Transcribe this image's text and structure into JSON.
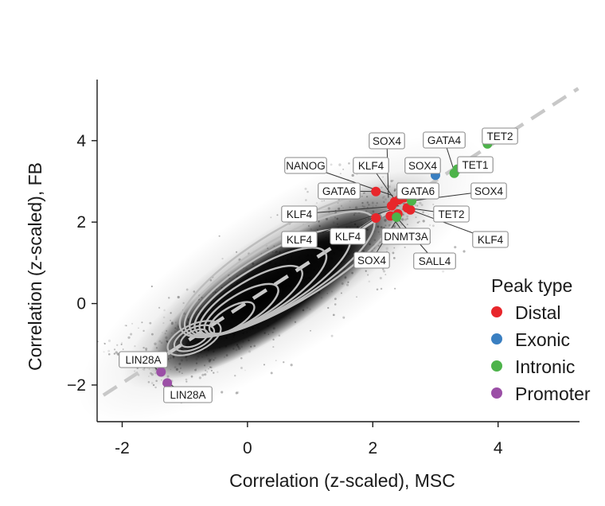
{
  "chart_data": {
    "type": "scatter",
    "title": "",
    "xlabel": "Correlation (z-scaled), MSC",
    "ylabel": "Correlation (z-scaled), FB",
    "xlim": [
      -2.4,
      5.3
    ],
    "ylim": [
      -2.9,
      5.5
    ],
    "xticks": [
      -2,
      0,
      2,
      4
    ],
    "yticks": [
      -2,
      0,
      2,
      4
    ],
    "xtick_labels": [
      "-2",
      "0",
      "2",
      "4"
    ],
    "ytick_labels": [
      "−2",
      "0",
      "2",
      "4"
    ],
    "grid": false,
    "reference_line": {
      "style": "dashed",
      "slope": 1,
      "intercept": 0,
      "color": "#c8c8c8"
    },
    "background_density": {
      "description_color": "#000000",
      "contour_color": "#bdbdbd"
    },
    "legend": {
      "title": "Peak type",
      "placement": "right",
      "entries": [
        {
          "name": "Distal",
          "color": "#e8262b"
        },
        {
          "name": "Exonic",
          "color": "#3a7fc1"
        },
        {
          "name": "Intronic",
          "color": "#4db34a"
        },
        {
          "name": "Promoter",
          "color": "#9b4fa6"
        }
      ]
    },
    "series": [
      {
        "name": "Distal",
        "color": "#e8262b",
        "points": [
          {
            "x": 2.05,
            "y": 2.75
          },
          {
            "x": 2.35,
            "y": 2.5
          },
          {
            "x": 2.42,
            "y": 2.55
          },
          {
            "x": 2.5,
            "y": 2.6
          },
          {
            "x": 2.3,
            "y": 2.4
          },
          {
            "x": 2.55,
            "y": 2.35
          },
          {
            "x": 2.6,
            "y": 2.3
          },
          {
            "x": 2.05,
            "y": 2.1
          },
          {
            "x": 2.28,
            "y": 2.15
          },
          {
            "x": 2.4,
            "y": 2.2
          }
        ]
      },
      {
        "name": "Exonic",
        "color": "#3a7fc1",
        "points": [
          {
            "x": 3.0,
            "y": 3.15
          }
        ]
      },
      {
        "name": "Intronic",
        "color": "#4db34a",
        "points": [
          {
            "x": 3.83,
            "y": 3.92
          },
          {
            "x": 3.35,
            "y": 3.3
          },
          {
            "x": 3.3,
            "y": 3.2
          },
          {
            "x": 2.62,
            "y": 2.52
          },
          {
            "x": 2.38,
            "y": 2.12
          }
        ]
      },
      {
        "name": "Promoter",
        "color": "#9b4fa6",
        "points": [
          {
            "x": -1.38,
            "y": -1.68
          },
          {
            "x": -1.28,
            "y": -1.95
          }
        ]
      }
    ],
    "annotations": [
      {
        "text": "SOX4",
        "x": 2.25,
        "y": 2.6
      },
      {
        "text": "GATA4",
        "x": 3.3,
        "y": 3.25
      },
      {
        "text": "TET2",
        "x": 3.83,
        "y": 3.92
      },
      {
        "text": "NANOG",
        "x": 2.32,
        "y": 2.65
      },
      {
        "text": "KLF4",
        "x": 2.35,
        "y": 2.55
      },
      {
        "text": "SOX4",
        "x": 3.0,
        "y": 3.15
      },
      {
        "text": "TET1",
        "x": 3.32,
        "y": 3.22
      },
      {
        "text": "GATA6",
        "x": 2.05,
        "y": 2.75
      },
      {
        "text": "GATA6",
        "x": 2.45,
        "y": 2.5
      },
      {
        "text": "SOX4",
        "x": 2.62,
        "y": 2.52
      },
      {
        "text": "KLF4",
        "x": 2.42,
        "y": 2.4
      },
      {
        "text": "TET2",
        "x": 2.55,
        "y": 2.35
      },
      {
        "text": "KLF4",
        "x": 2.6,
        "y": 2.3
      },
      {
        "text": "KLF4",
        "x": 2.28,
        "y": 2.3
      },
      {
        "text": "KLF4",
        "x": 2.05,
        "y": 2.1
      },
      {
        "text": "DNMT3A",
        "x": 2.3,
        "y": 2.15
      },
      {
        "text": "SOX4",
        "x": 2.4,
        "y": 2.1
      },
      {
        "text": "SALL4",
        "x": 2.38,
        "y": 2.12
      },
      {
        "text": "LIN28A",
        "x": -1.38,
        "y": -1.68
      },
      {
        "text": "LIN28A",
        "x": -1.28,
        "y": -1.95
      }
    ]
  }
}
